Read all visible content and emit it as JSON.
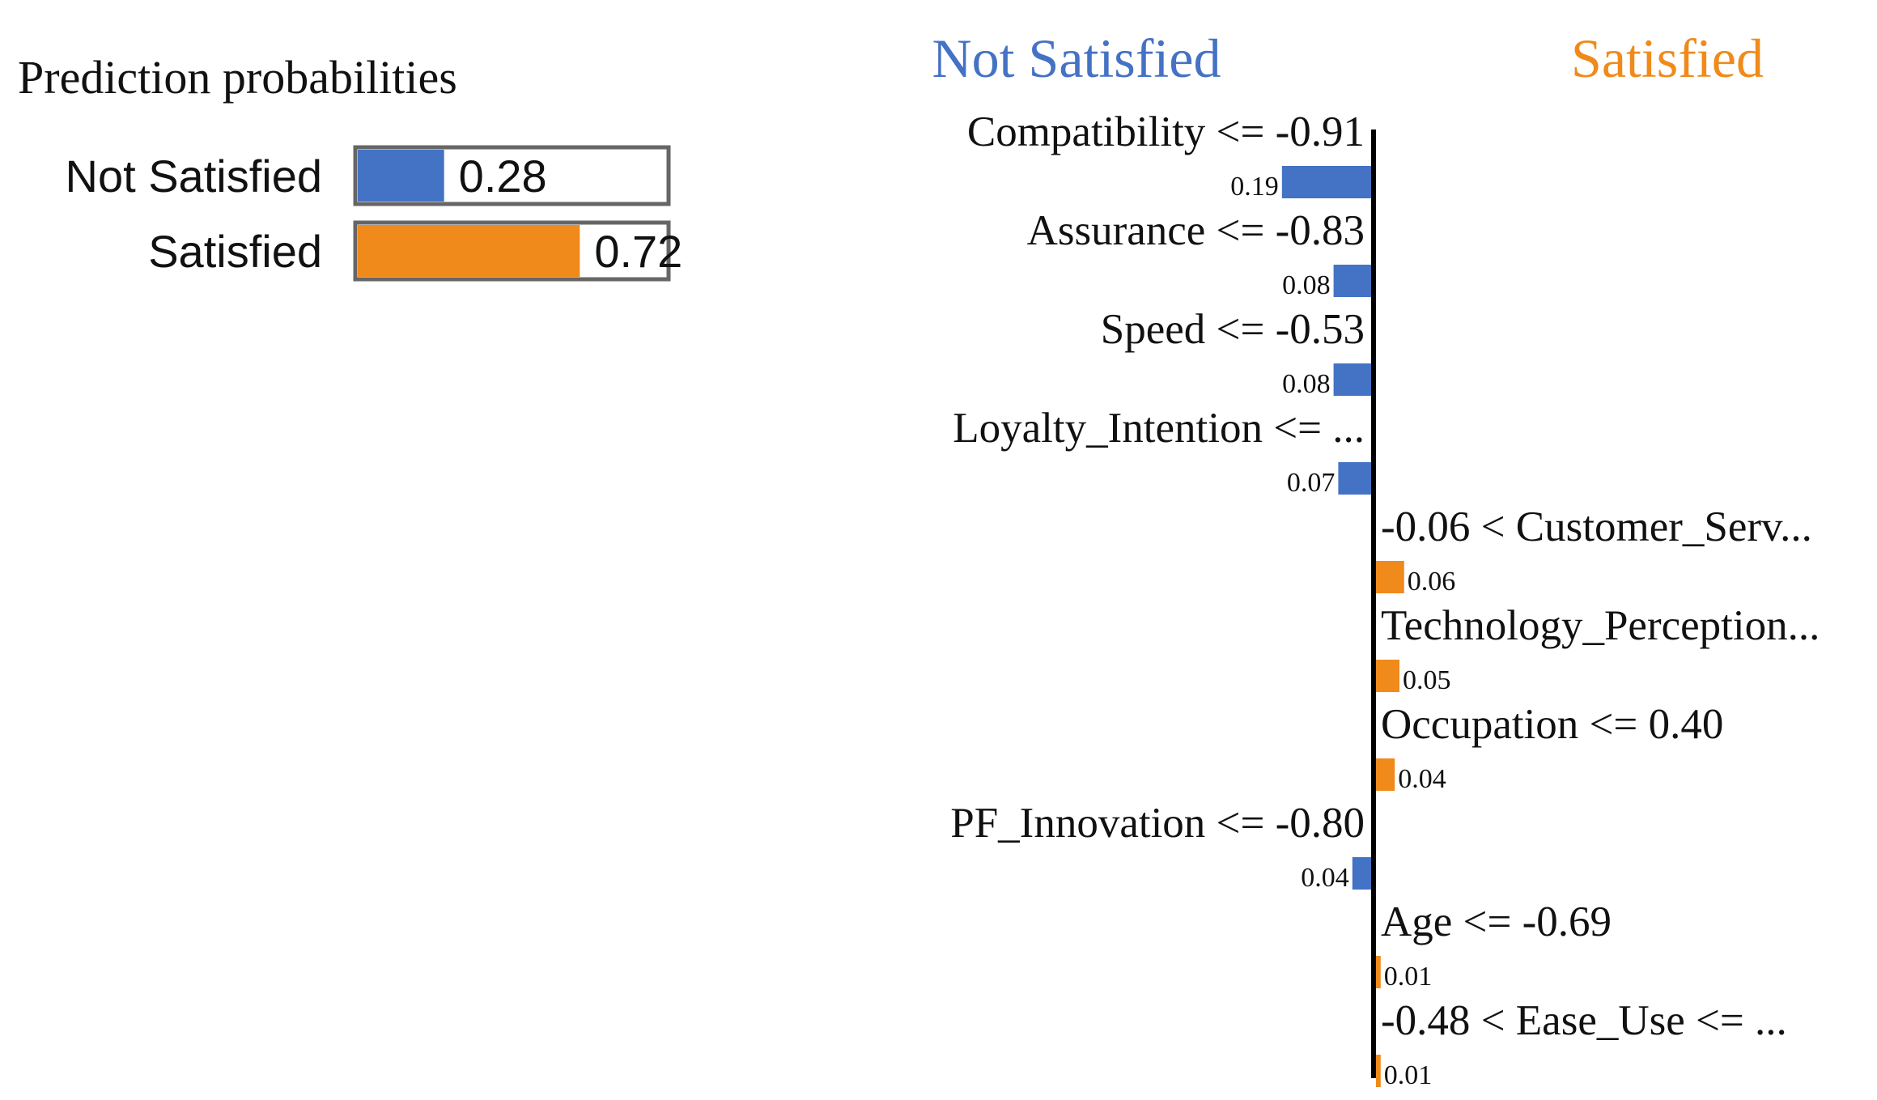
{
  "chart_data": [
    {
      "type": "bar",
      "orientation": "horizontal",
      "title": "Prediction probabilities",
      "categories": [
        "Not Satisfied",
        "Satisfied"
      ],
      "values": [
        0.28,
        0.72
      ],
      "value_labels": [
        "0.28",
        "0.72"
      ],
      "xlim": [
        0,
        1
      ],
      "colors": [
        "#4472c4",
        "#f08a1a"
      ]
    },
    {
      "type": "bar",
      "orientation": "horizontal",
      "title": "",
      "class_labels": {
        "negative": "Not Satisfied",
        "positive": "Satisfied"
      },
      "class_colors": {
        "negative": "#4472c4",
        "positive": "#f08a1a"
      },
      "features": [
        {
          "label": "Compatibility <= -0.91",
          "weight": -0.19,
          "value_label": "0.19"
        },
        {
          "label": "Assurance <= -0.83",
          "weight": -0.08,
          "value_label": "0.08"
        },
        {
          "label": "Speed <= -0.53",
          "weight": -0.08,
          "value_label": "0.08"
        },
        {
          "label": "Loyalty_Intention <= ...",
          "weight": -0.07,
          "value_label": "0.07"
        },
        {
          "label": "-0.06 < Customer_Serv...",
          "weight": 0.06,
          "value_label": "0.06"
        },
        {
          "label": "Technology_Perception...",
          "weight": 0.05,
          "value_label": "0.05"
        },
        {
          "label": "Occupation <= 0.40",
          "weight": 0.04,
          "value_label": "0.04"
        },
        {
          "label": "PF_Innovation <= -0.80",
          "weight": -0.04,
          "value_label": "0.04"
        },
        {
          "label": "Age <= -0.69",
          "weight": 0.01,
          "value_label": "0.01"
        },
        {
          "label": "-0.48 < Ease_Use <= ...",
          "weight": 0.01,
          "value_label": "0.01"
        }
      ],
      "xlim": [
        -0.2,
        0.2
      ]
    }
  ]
}
